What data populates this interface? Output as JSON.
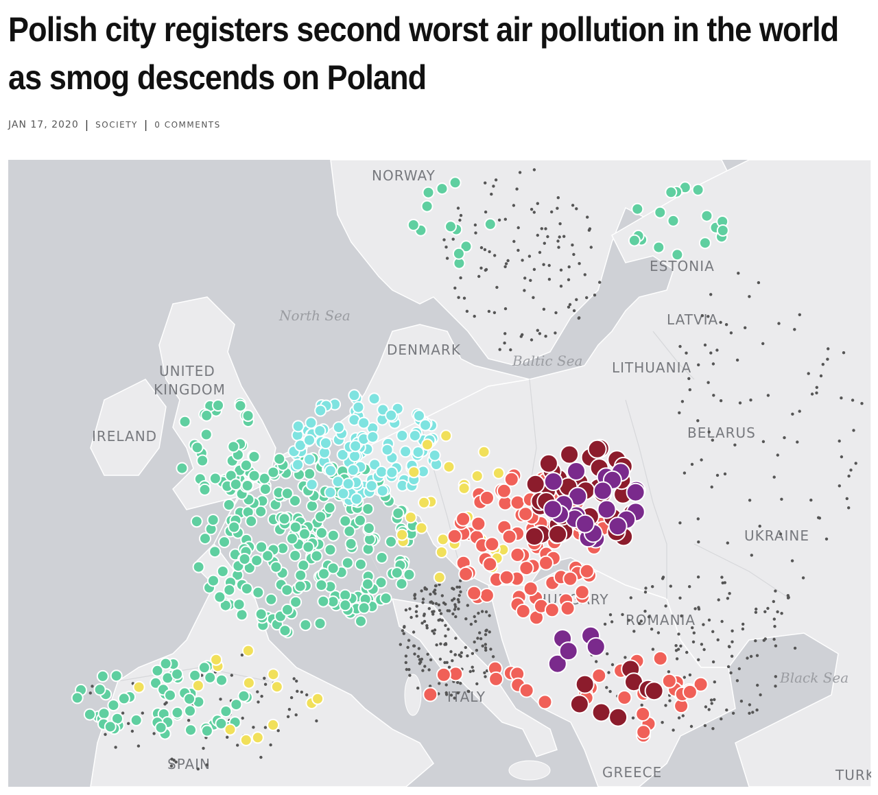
{
  "article": {
    "headline_line1": "Polish city registers second worst air pollution in the world",
    "headline_line2": "as smog descends on Poland",
    "date": "JAN 17, 2020",
    "category": "SOCIETY",
    "comments": "0 COMMENTS"
  },
  "map": {
    "labels": {
      "norway": "NORWAY",
      "estonia": "ESTONIA",
      "latvia": "LATVIA",
      "lithuania": "LITHUANIA",
      "denmark": "DENMARK",
      "united_kingdom_1": "UNITED",
      "united_kingdom_2": "KINGDOM",
      "ireland": "IRELAND",
      "belarus": "BELARUS",
      "ukraine": "UKRAINE",
      "hungary": "HUNGARY",
      "romania": "ROMANIA",
      "spain": "SPAIN",
      "italy": "ITALY",
      "greece": "GREECE",
      "turkey": "TURK",
      "north_sea": "North Sea",
      "baltic_sea": "Baltic Sea",
      "black_sea": "Black Sea"
    },
    "colors": {
      "sea": "#cfd1d6",
      "land": "#ebebed",
      "border": "#ffffff",
      "no_data": "#555555",
      "good": "#5fcfa0",
      "fair": "#7ee3e0",
      "moderate": "#f1e05a",
      "poor": "#f06058",
      "very_poor": "#8c1c2c",
      "extremely_poor": "#7a2a8c"
    }
  }
}
